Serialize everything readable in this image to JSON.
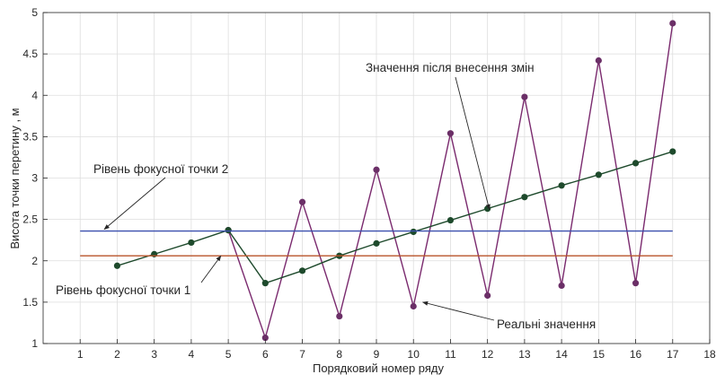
{
  "chart_data": {
    "type": "line",
    "xlabel": "Порядковий номер ряду",
    "ylabel": "Висота точки перетину , м",
    "xlim": [
      0,
      18
    ],
    "ylim": [
      1,
      5
    ],
    "xticks": [
      1,
      2,
      3,
      4,
      5,
      6,
      7,
      8,
      9,
      10,
      11,
      12,
      13,
      14,
      15,
      16,
      17,
      18
    ],
    "yticks": [
      1,
      1.5,
      2,
      2.5,
      3,
      3.5,
      4,
      4.5,
      5
    ],
    "grid": true,
    "series": [
      {
        "color": "#7a2a6e",
        "marker_color": "#6b2f67",
        "x": [
          5,
          6,
          7,
          8,
          9,
          10,
          11,
          12,
          13,
          14,
          15,
          16,
          17
        ],
        "y": [
          2.37,
          1.07,
          2.71,
          1.33,
          3.1,
          1.45,
          3.54,
          1.58,
          3.98,
          1.7,
          4.42,
          1.73,
          4.87
        ]
      },
      {
        "color": "#1e4a2c",
        "marker_color": "#1e4a2c",
        "x": [
          2,
          3,
          4,
          5,
          6,
          7,
          8,
          9,
          10,
          11,
          12,
          13,
          14,
          15,
          16,
          17
        ],
        "y": [
          1.94,
          2.08,
          2.22,
          2.37,
          1.73,
          1.88,
          2.06,
          2.21,
          2.35,
          2.49,
          2.63,
          2.77,
          2.91,
          3.04,
          3.18,
          3.32
        ]
      },
      {
        "color": "#3a4fae",
        "x": [
          1,
          17
        ],
        "y": [
          2.36,
          2.36
        ]
      },
      {
        "color": "#b8532a",
        "x": [
          1,
          17
        ],
        "y": [
          2.06,
          2.06
        ]
      }
    ],
    "annotations": [
      {
        "text": "Значення після внесення змін",
        "arrow_to": [
          12.05,
          2.62
        ]
      },
      {
        "text": "Рівень фокусної точки 2",
        "arrow_to": [
          1.65,
          2.38
        ]
      },
      {
        "text": "Рівень фокусної точки 1",
        "arrow_to": [
          4.8,
          2.06
        ]
      },
      {
        "text": "Реальні значення",
        "arrow_to": [
          10.25,
          1.5
        ]
      }
    ]
  }
}
